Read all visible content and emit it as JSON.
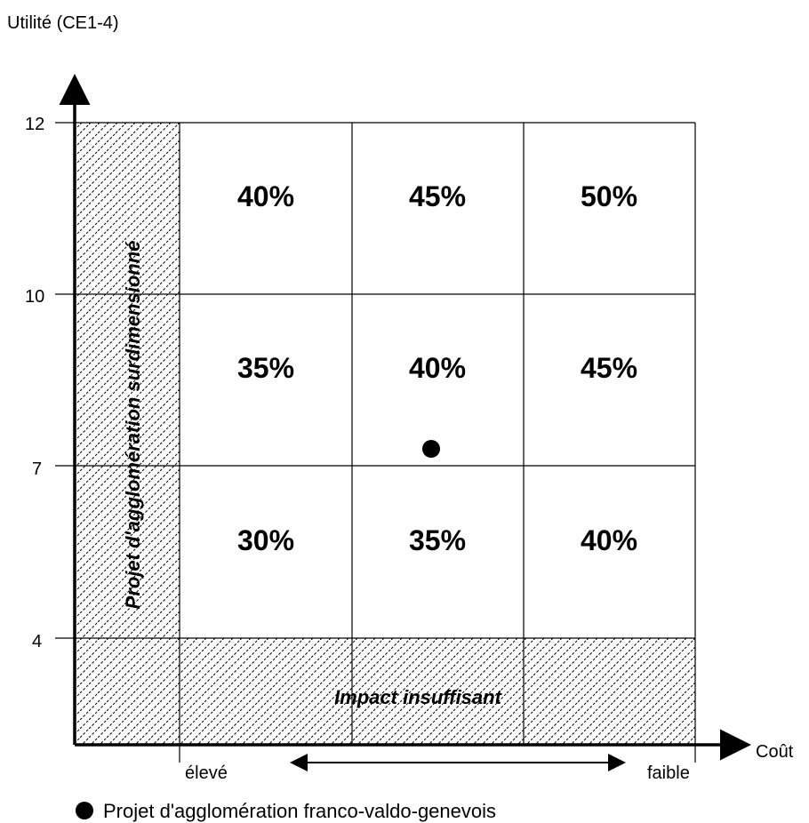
{
  "y_axis_title": "Utilité (CE1-4)",
  "x_axis_title": "Coût",
  "y_ticks": [
    "12",
    "10",
    "7",
    "4"
  ],
  "x_ticks": {
    "left": "élevé",
    "right": "faible"
  },
  "cells": [
    [
      "40%",
      "45%",
      "50%"
    ],
    [
      "35%",
      "40%",
      "45%"
    ],
    [
      "30%",
      "35%",
      "40%"
    ]
  ],
  "hatched_zones": {
    "left_label": "Projet d'agglomération surdimensionné",
    "bottom_label": "Impact insuffisant"
  },
  "legend": {
    "label": "Projet d'agglomération franco-valdo-genevois"
  }
}
